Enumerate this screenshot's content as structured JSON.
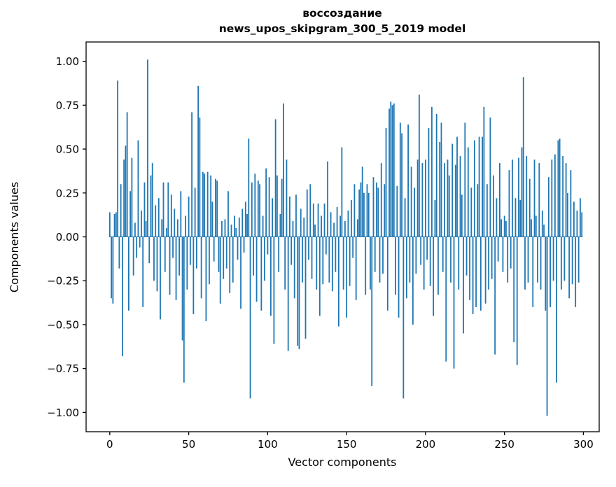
{
  "chart_data": {
    "type": "bar",
    "title_line1": "воссоздание",
    "title_line2": "news_upos_skipgram_300_5_2019 model",
    "xlabel": "Vector components",
    "ylabel": "Components values",
    "xlim": [
      -15,
      310
    ],
    "ylim": [
      -1.11,
      1.11
    ],
    "x_ticks": [
      0,
      50,
      100,
      150,
      200,
      250,
      300
    ],
    "x_tick_labels": [
      "0",
      "50",
      "100",
      "150",
      "200",
      "250",
      "300"
    ],
    "y_ticks": [
      -1.0,
      -0.75,
      -0.5,
      -0.25,
      0.0,
      0.25,
      0.5,
      0.75,
      1.0
    ],
    "y_tick_labels": [
      "−1.00",
      "−0.75",
      "−0.50",
      "−0.25",
      "0.00",
      "0.25",
      "0.50",
      "0.75",
      "1.00"
    ],
    "bar_color": "#1f77b4",
    "grid": false,
    "legend": null,
    "values": [
      0.14,
      -0.35,
      -0.38,
      0.13,
      0.14,
      0.89,
      -0.18,
      0.3,
      -0.68,
      0.44,
      0.52,
      0.71,
      -0.42,
      0.26,
      0.45,
      -0.22,
      0.08,
      -0.12,
      0.55,
      -0.06,
      0.15,
      -0.4,
      0.31,
      0.09,
      1.01,
      -0.15,
      0.35,
      0.42,
      -0.25,
      0.18,
      -0.31,
      0.22,
      -0.47,
      0.1,
      0.31,
      -0.2,
      0.05,
      0.31,
      -0.33,
      0.24,
      -0.12,
      0.16,
      -0.36,
      0.1,
      -0.22,
      0.26,
      -0.59,
      -0.83,
      0.12,
      -0.3,
      0.23,
      -0.16,
      0.71,
      -0.44,
      0.28,
      -0.18,
      0.86,
      0.68,
      -0.35,
      0.37,
      0.36,
      -0.48,
      0.37,
      -0.27,
      0.35,
      0.2,
      -0.14,
      0.33,
      0.32,
      -0.2,
      -0.38,
      0.09,
      -0.24,
      0.1,
      -0.18,
      0.26,
      -0.32,
      0.07,
      -0.26,
      0.12,
      0.05,
      -0.13,
      0.11,
      -0.41,
      0.16,
      -0.09,
      0.2,
      0.13,
      0.56,
      -0.92,
      0.31,
      -0.22,
      0.36,
      -0.37,
      0.32,
      0.3,
      -0.42,
      0.12,
      -0.25,
      0.39,
      -0.1,
      0.34,
      -0.45,
      0.22,
      -0.61,
      0.67,
      0.35,
      -0.2,
      0.13,
      0.33,
      0.76,
      -0.3,
      0.44,
      -0.65,
      0.23,
      -0.16,
      0.09,
      -0.35,
      0.24,
      -0.62,
      -0.64,
      0.16,
      -0.26,
      0.11,
      -0.58,
      0.27,
      -0.13,
      0.3,
      -0.24,
      0.19,
      0.07,
      -0.3,
      0.19,
      -0.45,
      0.12,
      -0.27,
      0.19,
      -0.1,
      0.43,
      -0.26,
      0.14,
      -0.31,
      0.08,
      -0.2,
      0.17,
      -0.51,
      0.12,
      0.51,
      -0.3,
      0.09,
      -0.46,
      0.15,
      -0.28,
      0.21,
      -0.12,
      0.3,
      -0.36,
      0.1,
      0.27,
      0.31,
      0.4,
      0.25,
      -0.33,
      0.3,
      0.25,
      -0.3,
      -0.85,
      0.34,
      -0.2,
      0.31,
      0.28,
      -0.26,
      0.42,
      -0.21,
      0.3,
      0.62,
      -0.42,
      0.73,
      0.77,
      0.75,
      0.76,
      -0.33,
      0.29,
      -0.46,
      0.65,
      0.59,
      -0.92,
      0.22,
      -0.35,
      0.64,
      -0.26,
      0.4,
      -0.5,
      0.28,
      -0.21,
      0.44,
      0.81,
      -0.16,
      0.42,
      -0.3,
      0.44,
      -0.13,
      0.62,
      -0.28,
      0.74,
      -0.45,
      0.21,
      0.7,
      -0.33,
      0.54,
      0.65,
      -0.2,
      0.42,
      -0.71,
      0.44,
      0.35,
      -0.26,
      0.53,
      -0.75,
      0.41,
      0.57,
      -0.3,
      0.46,
      0.24,
      -0.55,
      0.65,
      -0.22,
      0.51,
      -0.36,
      0.28,
      -0.44,
      0.55,
      -0.4,
      0.3,
      0.57,
      -0.42,
      0.57,
      0.74,
      -0.38,
      0.3,
      -0.3,
      0.68,
      -0.24,
      0.35,
      -0.67,
      0.22,
      -0.14,
      0.42,
      0.1,
      -0.2,
      0.12,
      0.09,
      -0.26,
      0.38,
      -0.18,
      0.44,
      -0.6,
      0.22,
      -0.73,
      0.45,
      0.21,
      0.51,
      0.91,
      -0.3,
      0.46,
      -0.26,
      0.33,
      0.1,
      -0.4,
      0.44,
      0.12,
      -0.26,
      0.42,
      -0.3,
      0.15,
      0.07,
      -0.42,
      -1.02,
      0.34,
      -0.4,
      0.44,
      -0.25,
      0.47,
      -0.83,
      0.55,
      0.56,
      -0.3,
      0.46,
      -0.25,
      0.42,
      0.25,
      -0.35,
      0.38,
      -0.27,
      0.2,
      -0.4,
      0.15,
      -0.26,
      0.22,
      0.14
    ]
  }
}
